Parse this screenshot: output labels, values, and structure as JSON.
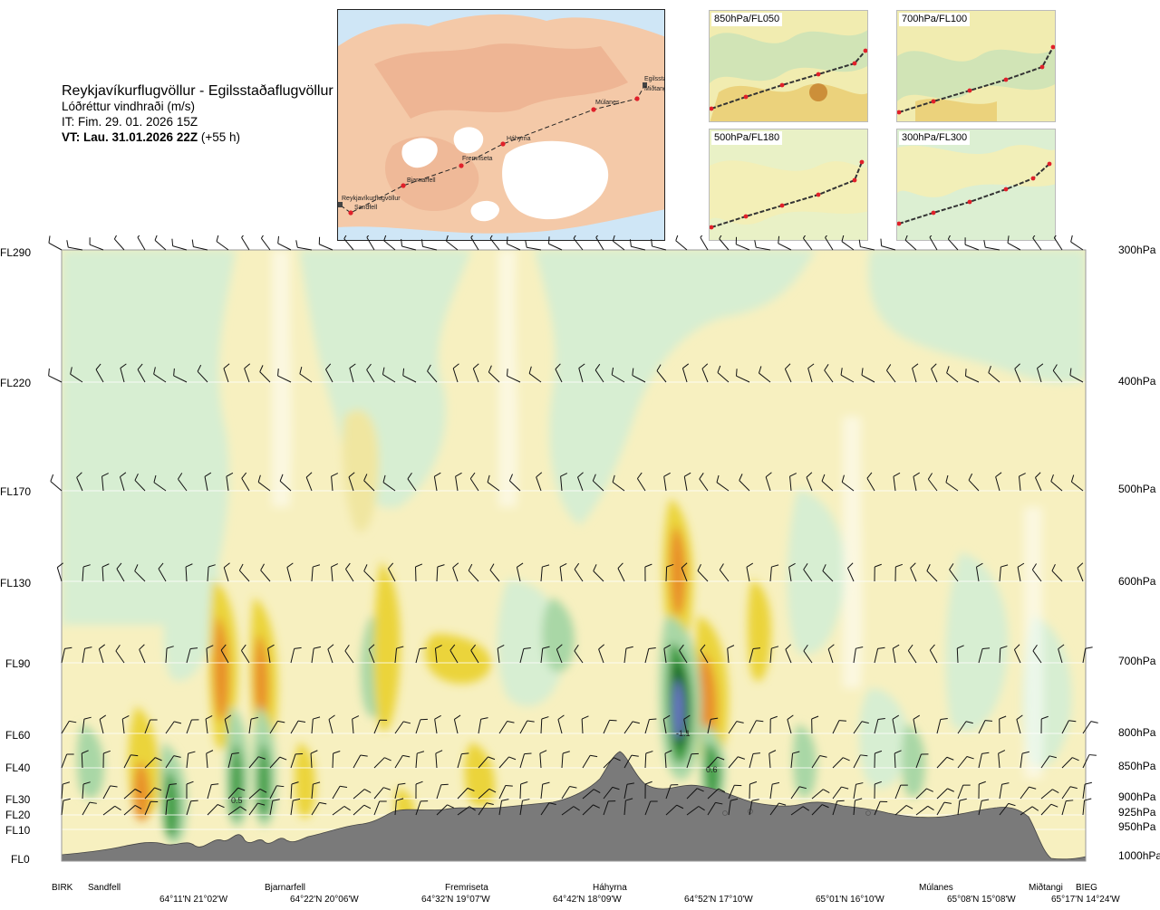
{
  "title": {
    "route": "Reykjavíkurflugvöllur - Egilsstaðaflugvöllur",
    "subtitle": "Lóðréttur vindhraði (m/s)",
    "it": "IT: Fim. 29. 01. 2026 15Z",
    "vt_bold": "VT: Lau. 31.01.2026 22Z",
    "vt_rest": " (+55 h)"
  },
  "route_map": {
    "places": [
      "Reykjavíkurflugvöllur",
      "Sandfell",
      "Bjarnarfell",
      "Fremriseta",
      "Háhyrna",
      "Múlanes",
      "Egilsstaðir",
      "Miðtangi"
    ],
    "colors": {
      "land": "#f4c9a8",
      "sea": "#cfe6f6",
      "ice": "#ffffff",
      "route": "#222222",
      "points": "#e0202a"
    }
  },
  "thumbnails": [
    {
      "label": "850hPa/FL050"
    },
    {
      "label": "700hPa/FL100"
    },
    {
      "label": "500hPa/FL180"
    },
    {
      "label": "300hPa/FL300"
    }
  ],
  "flight_levels": [
    "FL290",
    "FL220",
    "FL170",
    "FL130",
    "FL90",
    "FL60",
    "FL40",
    "FL30",
    "FL20",
    "FL10",
    "FL0"
  ],
  "pressure_levels": [
    "300hPa",
    "400hPa",
    "500hPa",
    "600hPa",
    "700hPa",
    "800hPa",
    "850hPa",
    "900hPa",
    "925hPa",
    "950hPa",
    "1000hPa"
  ],
  "stations": [
    "BIRK",
    "Sandfell",
    "Bjarnarfell",
    "Fremriseta",
    "Háhyrna",
    "Múlanes",
    "Miðtangi",
    "BIEG"
  ],
  "coordinates": [
    "64°11'N 21°02'W",
    "64°22'N 20°06'W",
    "64°32'N 19°07'W",
    "64°42'N 18°09'W",
    "64°52'N 17°10'W",
    "65°01'N 16°10'W",
    "65°08'N 15°08'W",
    "65°17'N 14°24'W"
  ],
  "cell_labels": [
    "-1.1",
    "0.6",
    "0.5"
  ],
  "colors": {
    "terrain": "#7a7a7a",
    "updraft_light": "#f8efb2",
    "updraft_mid": "#ebd43a",
    "updraft_strong": "#e8902a",
    "updraft_max": "#c8501e",
    "down_light": "#d7eed2",
    "down_mid": "#a9d7a6",
    "down_strong": "#3f9e45",
    "down_max": "#1f6a2a",
    "down_extreme": "#6b73c8"
  }
}
